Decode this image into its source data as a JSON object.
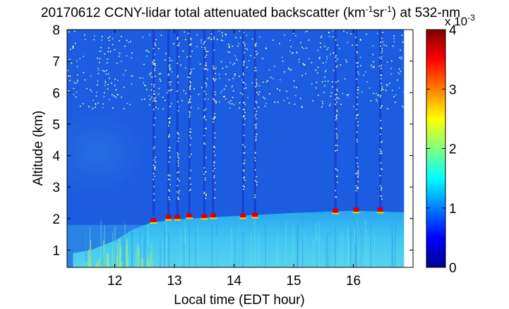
{
  "chart_data": {
    "type": "heatmap",
    "title_prefix": "20170612 CCNY-lidar total attenuated backscatter (km",
    "title_sup1": "-1",
    "title_mid": "sr",
    "title_sup2": "-1",
    "title_suffix": ") at 532-nm",
    "xlabel": "Local time (EDT hour)",
    "ylabel": "Altitude (km)",
    "xlim": [
      11.2,
      17.0
    ],
    "ylim": [
      0.45,
      8.0
    ],
    "x_ticks": [
      "12",
      "13",
      "14",
      "15",
      "16"
    ],
    "x_tick_values": [
      12,
      13,
      14,
      15,
      16
    ],
    "y_ticks": [
      "1",
      "2",
      "3",
      "4",
      "5",
      "6",
      "7",
      "8"
    ],
    "y_tick_values": [
      1,
      2,
      3,
      4,
      5,
      6,
      7,
      8
    ],
    "data_end_x": 16.85,
    "colorbar": {
      "min": 0,
      "max": 4,
      "ticks": [
        "0",
        "1",
        "2",
        "3",
        "4"
      ],
      "tick_values": [
        0,
        1,
        2,
        3,
        4
      ],
      "multiplier_label": "x 10",
      "multiplier_exp": "-3",
      "colormap": "jet"
    },
    "boundary_layer_top_km": [
      {
        "x": 11.3,
        "y": 0.9
      },
      {
        "x": 11.6,
        "y": 1.0
      },
      {
        "x": 12.0,
        "y": 1.3
      },
      {
        "x": 12.3,
        "y": 1.65
      },
      {
        "x": 12.6,
        "y": 1.87
      },
      {
        "x": 13.0,
        "y": 1.97
      },
      {
        "x": 13.5,
        "y": 2.03
      },
      {
        "x": 14.0,
        "y": 2.08
      },
      {
        "x": 15.0,
        "y": 2.18
      },
      {
        "x": 16.0,
        "y": 2.25
      },
      {
        "x": 16.85,
        "y": 2.2
      }
    ],
    "aerosol_layer_top_km": 1.8,
    "cloud_times": [
      12.65,
      12.9,
      13.05,
      13.25,
      13.5,
      13.65,
      14.15,
      14.35,
      15.7,
      16.05,
      16.45
    ],
    "cloud_base_km": [
      1.95,
      2.05,
      2.05,
      2.1,
      2.08,
      2.1,
      2.1,
      2.12,
      2.25,
      2.28,
      2.28
    ],
    "cloud_peak_value": 4.0,
    "colors": {
      "free_troposphere": "#1c5ce0",
      "boundary_layer": "#2bb8ef",
      "cloud": "#d80000"
    }
  }
}
